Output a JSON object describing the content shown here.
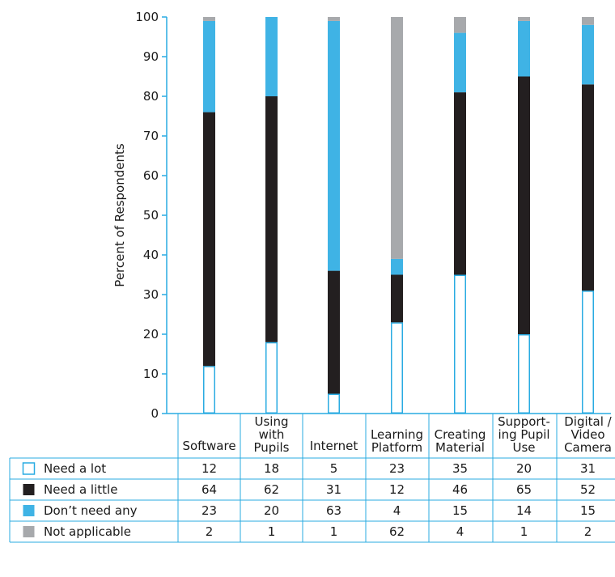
{
  "chart_data": {
    "type": "bar",
    "stacked": true,
    "ylabel": "Percent of Respondents",
    "ylim": [
      0,
      100
    ],
    "yticks": [
      0,
      10,
      20,
      30,
      40,
      50,
      60,
      70,
      80,
      90,
      100
    ],
    "categories": [
      [
        "Software"
      ],
      [
        "Using",
        "with",
        "Pupils"
      ],
      [
        "Internet"
      ],
      [
        "Learning",
        "Platform"
      ],
      [
        "Creating",
        "Material"
      ],
      [
        "Support-",
        "ing Pupil",
        "Use"
      ],
      [
        "Digital /",
        "Video",
        "Camera"
      ]
    ],
    "series": [
      {
        "name": "Need a lot",
        "values": [
          12,
          18,
          5,
          23,
          35,
          20,
          31
        ]
      },
      {
        "name": "Need a little",
        "values": [
          64,
          62,
          31,
          12,
          46,
          65,
          52
        ]
      },
      {
        "name": "Don’t need any",
        "values": [
          23,
          20,
          63,
          4,
          15,
          14,
          15
        ]
      },
      {
        "name": "Not applicable",
        "values": [
          2,
          1,
          1,
          62,
          4,
          1,
          2
        ]
      }
    ],
    "legend": "table-below",
    "grid": false
  },
  "colors": {
    "need_a_lot_fill": "#ffffff",
    "need_a_lot_stroke": "#29abe2",
    "need_a_little": "#231f20",
    "dont_need_any": "#3fb3e5",
    "not_applicable": "#a7a9ac",
    "axis": "#29abe2",
    "table_rule": "#29abe2"
  }
}
